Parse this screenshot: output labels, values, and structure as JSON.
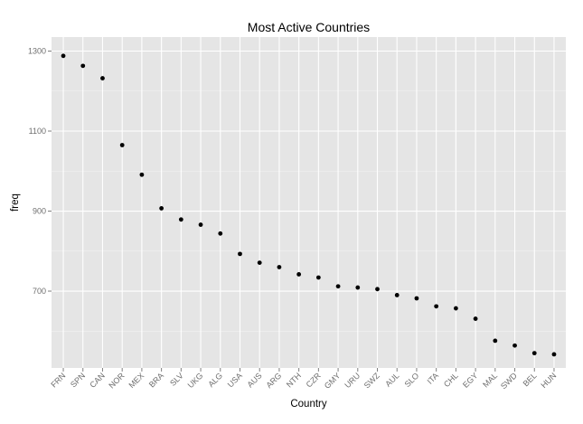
{
  "chart_data": {
    "type": "scatter",
    "title": "Most Active Countries",
    "xlabel": "Country",
    "ylabel": "freq",
    "categories": [
      "FRN",
      "SPN",
      "CAN",
      "NOR",
      "MEX",
      "BRA",
      "SLV",
      "UKG",
      "ALG",
      "USA",
      "AUS",
      "ARG",
      "NTH",
      "CZR",
      "GMY",
      "URU",
      "SWZ",
      "AUL",
      "SLO",
      "ITA",
      "CHL",
      "EGY",
      "MAL",
      "SWD",
      "BEL",
      "HUN"
    ],
    "values": [
      1288,
      1263,
      1232,
      1065,
      991,
      907,
      879,
      866,
      844,
      793,
      771,
      760,
      742,
      734,
      712,
      709,
      705,
      690,
      682,
      662,
      657,
      631,
      576,
      564,
      545,
      542
    ],
    "ylim": [
      508,
      1335
    ],
    "yticks": [
      700,
      900,
      1100,
      1300
    ],
    "grid": true,
    "colors": {
      "panel": "#e5e5e5",
      "grid_major": "#ffffff",
      "grid_minor": "#f2f2f2",
      "point": "#000000"
    }
  }
}
